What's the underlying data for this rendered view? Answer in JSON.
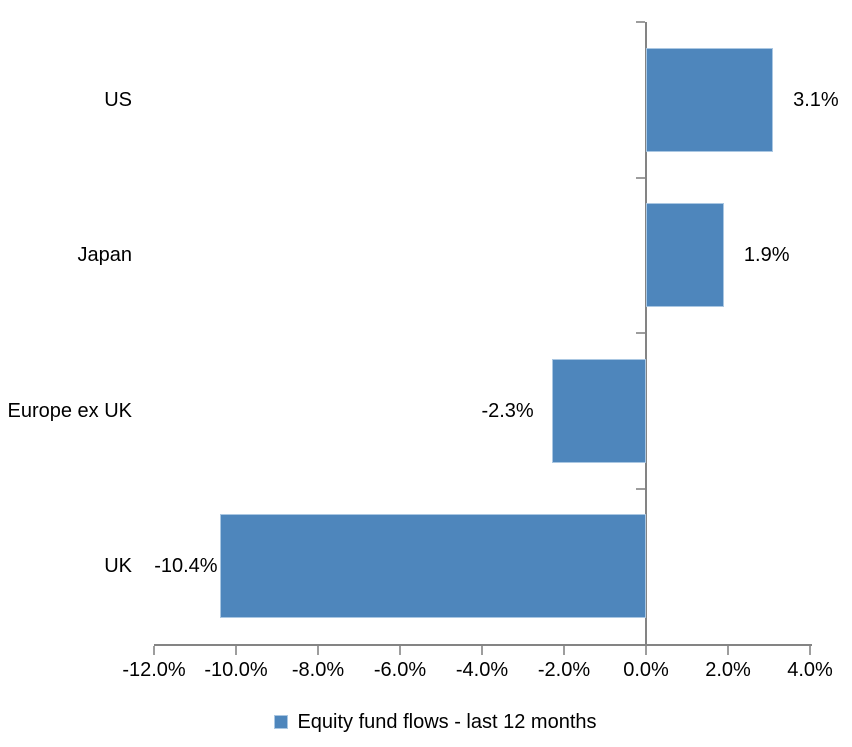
{
  "chart_data": {
    "type": "bar",
    "orientation": "horizontal",
    "title": "",
    "categories": [
      "US",
      "Japan",
      "Europe ex UK",
      "UK"
    ],
    "values": [
      3.1,
      1.9,
      -2.3,
      -10.4
    ],
    "value_labels": [
      "3.1%",
      "1.9%",
      "-2.3%",
      "-10.4%"
    ],
    "series_name": "Equity fund flows - last 12 months",
    "x_ticks": [
      {
        "value": -12,
        "label": "-12.0%"
      },
      {
        "value": -10,
        "label": "-10.0%"
      },
      {
        "value": -8,
        "label": "-8.0%"
      },
      {
        "value": -6,
        "label": "-6.0%"
      },
      {
        "value": -4,
        "label": "-4.0%"
      },
      {
        "value": -2,
        "label": "-2.0%"
      },
      {
        "value": 0,
        "label": "0.0%"
      },
      {
        "value": 2,
        "label": "2.0%"
      },
      {
        "value": 4,
        "label": "4.0%"
      }
    ],
    "xlim": [
      -12,
      4
    ],
    "grid": false,
    "legend_position": "bottom",
    "colors": {
      "bar": "#4E86BC",
      "bar_border": "#AAC7E2",
      "axis": "#848484",
      "tick": "#9D9D9D",
      "text": "#000000"
    }
  }
}
